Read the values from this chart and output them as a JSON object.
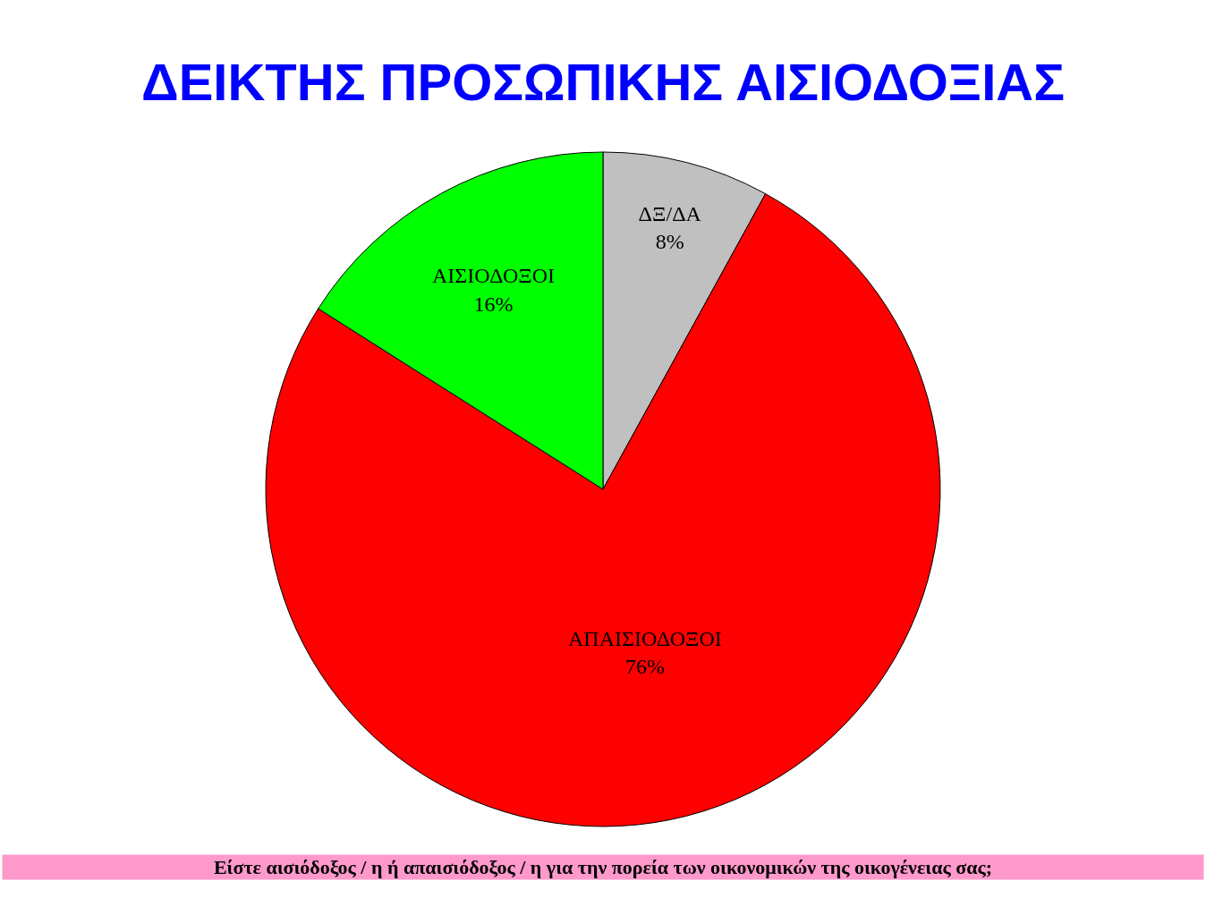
{
  "chart_data": {
    "type": "pie",
    "title": "ΔΕΙΚΤΗΣ ΠΡΟΣΩΠΙΚΗΣ ΑΙΣΙΟΔΟΞΙΑΣ",
    "categories": [
      "ΔΞ/ΔΑ",
      "ΑΠΑΙΣΙΟΔΟΞΟΙ",
      "ΑΙΣΙΟΔΟΞΟΙ"
    ],
    "values": [
      8,
      76,
      16
    ],
    "value_labels": [
      "8%",
      "76%",
      "16%"
    ],
    "colors": [
      "#c0c0c0",
      "#ff0000",
      "#00ff00"
    ],
    "legend": false,
    "annotations": [
      "Είστε αισιόδοξος / η ή απαισιόδοξος / η για την πορεία των οικονομικών της οικογένειας σας;"
    ]
  }
}
